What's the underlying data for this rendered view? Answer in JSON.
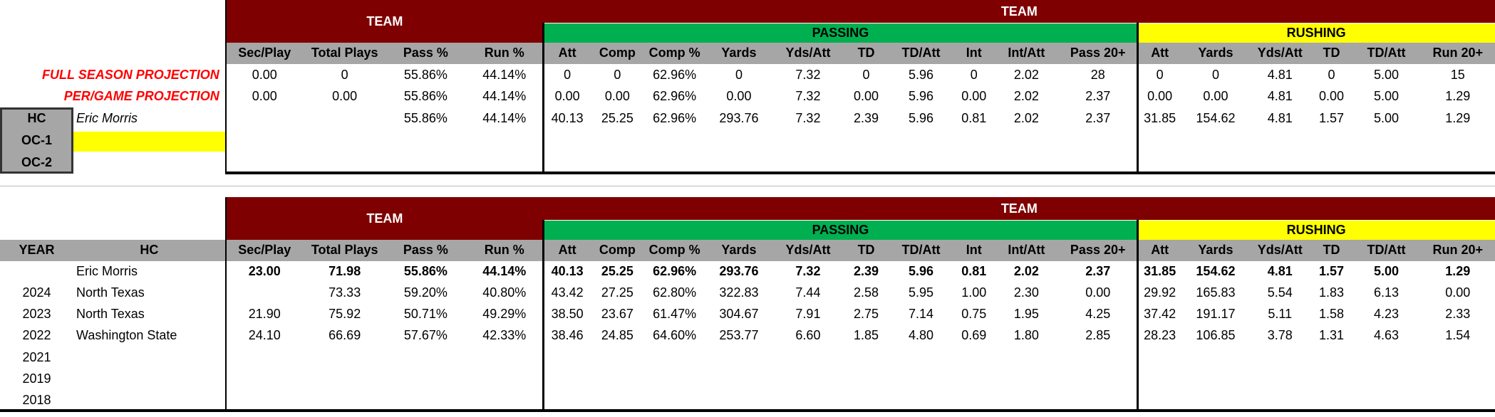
{
  "top": {
    "team_left": "TEAM",
    "team_right": "TEAM",
    "passing": "PASSING",
    "rushing": "RUSHING",
    "columns": [
      "Sec/Play",
      "Total Plays",
      "Pass %",
      "Run %",
      "Att",
      "Comp",
      "Comp %",
      "Yards",
      "Yds/Att",
      "TD",
      "TD/Att",
      "Int",
      "Int/Att",
      "Pass 20+",
      "Att",
      "Yards",
      "Yds/Att",
      "TD",
      "TD/Att",
      "Run 20+"
    ],
    "rows": [
      {
        "label": "FULL SEASON PROJECTION",
        "cells": [
          "0.00",
          "0",
          "55.86%",
          "44.14%",
          "0",
          "0",
          "62.96%",
          "0",
          "7.32",
          "0",
          "5.96",
          "0",
          "2.02",
          "28",
          "0",
          "0",
          "4.81",
          "0",
          "5.00",
          "15"
        ]
      },
      {
        "label": "PER/GAME PROJECTION",
        "cells": [
          "0.00",
          "0.00",
          "55.86%",
          "44.14%",
          "0.00",
          "0.00",
          "62.96%",
          "0.00",
          "7.32",
          "0.00",
          "5.96",
          "0.00",
          "2.02",
          "2.37",
          "0.00",
          "0.00",
          "4.81",
          "0.00",
          "5.00",
          "1.29"
        ]
      },
      {
        "cells": [
          null,
          null,
          "55.86%",
          "44.14%",
          "40.13",
          "25.25",
          "62.96%",
          "293.76",
          "7.32",
          "2.39",
          "5.96",
          "0.81",
          "2.02",
          "2.37",
          "31.85",
          "154.62",
          "4.81",
          "1.57",
          "5.00",
          "1.29"
        ]
      }
    ],
    "staff": [
      {
        "role": "HC",
        "name": "Eric Morris"
      },
      {
        "role": "OC-1"
      },
      {
        "role": "OC-2"
      }
    ]
  },
  "bottom": {
    "team_left": "TEAM",
    "team_right": "TEAM",
    "passing": "PASSING",
    "rushing": "RUSHING",
    "year_header": "YEAR",
    "hc_header": "HC",
    "columns": [
      "Sec/Play",
      "Total Plays",
      "Pass %",
      "Run %",
      "Att",
      "Comp",
      "Comp %",
      "Yards",
      "Yds/Att",
      "TD",
      "TD/Att",
      "Int",
      "Int/Att",
      "Pass 20+",
      "Att",
      "Yards",
      "Yds/Att",
      "TD",
      "TD/Att",
      "Run 20+"
    ],
    "rows": [
      {
        "hc": "Eric Morris",
        "cells": [
          "23.00",
          "71.98",
          "55.86%",
          "44.14%",
          "40.13",
          "25.25",
          "62.96%",
          "293.76",
          "7.32",
          "2.39",
          "5.96",
          "0.81",
          "2.02",
          "2.37",
          "31.85",
          "154.62",
          "4.81",
          "1.57",
          "5.00",
          "1.29"
        ]
      },
      {
        "year": "2024",
        "hc": "North Texas",
        "cells": [
          null,
          "73.33",
          "59.20%",
          "40.80%",
          "43.42",
          "27.25",
          "62.80%",
          "322.83",
          "7.44",
          "2.58",
          "5.95",
          "1.00",
          "2.30",
          "0.00",
          "29.92",
          "165.83",
          "5.54",
          "1.83",
          "6.13",
          "0.00"
        ]
      },
      {
        "year": "2023",
        "hc": "North Texas",
        "cells": [
          "21.90",
          "75.92",
          "50.71%",
          "49.29%",
          "38.50",
          "23.67",
          "61.47%",
          "304.67",
          "7.91",
          "2.75",
          "7.14",
          "0.75",
          "1.95",
          "4.25",
          "37.42",
          "191.17",
          "5.11",
          "1.58",
          "4.23",
          "2.33"
        ]
      },
      {
        "year": "2022",
        "hc": "Washington State",
        "cells": [
          "24.10",
          "66.69",
          "57.67%",
          "42.33%",
          "38.46",
          "24.85",
          "64.60%",
          "253.77",
          "6.60",
          "1.85",
          "4.80",
          "0.69",
          "1.80",
          "2.85",
          "28.23",
          "106.85",
          "3.78",
          "1.31",
          "4.63",
          "1.54"
        ]
      },
      {
        "year": "2021"
      },
      {
        "year": "2019"
      },
      {
        "year": "2018"
      }
    ]
  }
}
